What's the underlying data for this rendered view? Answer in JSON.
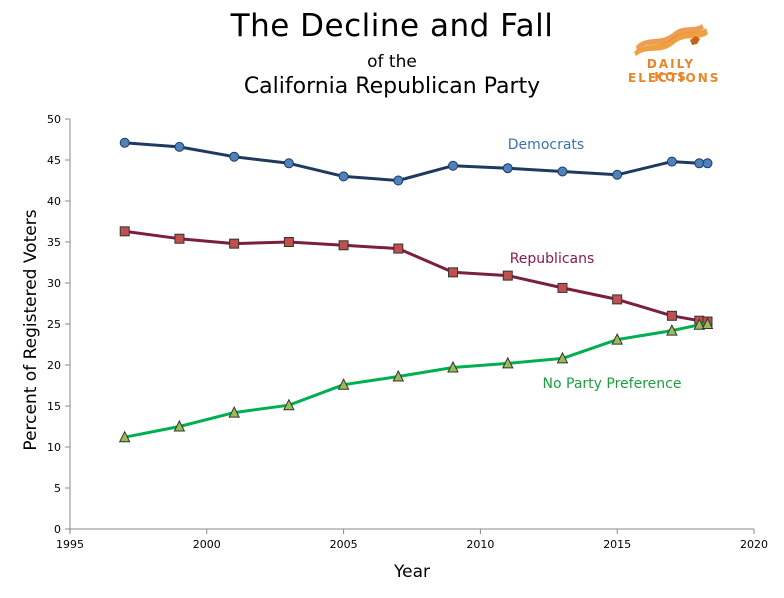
{
  "header": {
    "title": "The Decline and Fall",
    "subtitle": "of the",
    "subtitle2": "California Republican Party"
  },
  "logo": {
    "line1": "DAILY KOS",
    "line2": "ELECTIONS",
    "color": "#e8862a"
  },
  "chart_data": {
    "type": "line",
    "title": "The Decline and Fall of the California Republican Party",
    "xlabel": "Year",
    "ylabel": "Percent of Registered Voters",
    "xlim": [
      1995,
      2020
    ],
    "ylim": [
      0,
      50
    ],
    "x_ticks": [
      1995,
      2000,
      2005,
      2010,
      2015,
      2020
    ],
    "y_ticks": [
      0,
      5,
      10,
      15,
      20,
      25,
      30,
      35,
      40,
      45,
      50
    ],
    "grid": false,
    "x": [
      1997,
      1999,
      2001,
      2003,
      2005,
      2007,
      2009,
      2011,
      2013,
      2015,
      2017,
      2018,
      2018.3
    ],
    "series": [
      {
        "name": "Democrats",
        "color": "#1f3a5f",
        "marker": "circle",
        "marker_color": "#4f81bd",
        "label_color": "#3d6fb0",
        "values": [
          47.1,
          46.6,
          45.4,
          44.6,
          43.0,
          42.5,
          44.3,
          44.0,
          43.6,
          43.2,
          44.8,
          44.6,
          44.6
        ]
      },
      {
        "name": "Republicans",
        "color": "#7a1f3d",
        "marker": "square",
        "marker_color": "#c0504d",
        "label_color": "#8b1a4a",
        "values": [
          36.3,
          35.4,
          34.8,
          35.0,
          34.6,
          34.2,
          31.3,
          30.9,
          29.4,
          28.0,
          26.0,
          25.4,
          25.3
        ]
      },
      {
        "name": "No Party Preference",
        "color": "#00b050",
        "marker": "triangle",
        "marker_color": "#9bbb59",
        "label_color": "#1e9e40",
        "values": [
          11.2,
          12.5,
          14.2,
          15.1,
          17.6,
          18.6,
          19.7,
          20.2,
          20.8,
          23.1,
          24.2,
          24.9,
          25.0
        ]
      }
    ]
  }
}
